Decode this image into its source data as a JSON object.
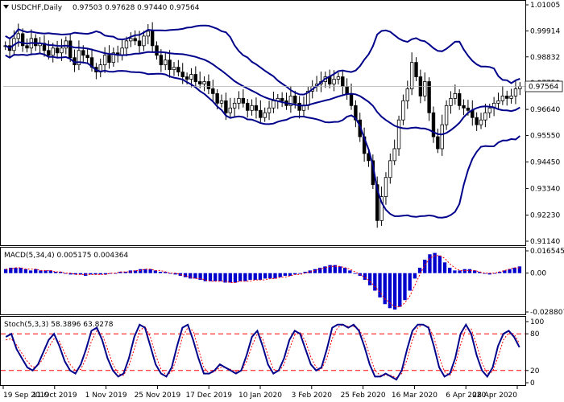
{
  "header": {
    "symbol": "USDCHF,Daily",
    "ohlc": "0.97503 0.97628 0.97440 0.97564"
  },
  "current_price_label": "0.97564",
  "colors": {
    "candles": "#000000",
    "bollinger": "#00008b",
    "macd_hist": "#0000cd",
    "macd_signal": "#ff0000",
    "stoch_main": "#00008b",
    "stoch_signal": "#ff0000",
    "current_price_bg": "#ffffff"
  },
  "chart_data": [
    {
      "type": "candlestick",
      "title": "USDCHF,Daily",
      "x_tick_labels": [
        "19 Sep 2019",
        "11 Oct 2019",
        "1 Nov 2019",
        "25 Nov 2019",
        "17 Dec 2019",
        "10 Jan 2020",
        "3 Feb 2020",
        "25 Feb 2020",
        "16 Mar 2020",
        "6 Apr 2020",
        "28 Apr 2020"
      ],
      "y_tick_labels": [
        "1.01005",
        "0.99914",
        "0.98832",
        "0.97750",
        "0.96640",
        "0.95550",
        "0.94450",
        "0.93340",
        "0.92230",
        "0.91140"
      ],
      "ylim": [
        0.9114,
        1.01005
      ],
      "indicators": [
        "Bollinger Bands (middle, upper, lower)"
      ],
      "close_series": [
        0.993,
        0.991,
        0.996,
        0.998,
        0.993,
        0.992,
        0.996,
        0.993,
        0.994,
        0.991,
        0.989,
        0.992,
        0.99,
        0.992,
        0.995,
        0.988,
        0.985,
        0.991,
        0.989,
        0.988,
        0.984,
        0.982,
        0.985,
        0.989,
        0.986,
        0.99,
        0.989,
        0.992,
        0.995,
        0.996,
        0.995,
        0.993,
        0.997,
        0.999,
        0.993,
        0.989,
        0.985,
        0.987,
        0.983,
        0.984,
        0.982,
        0.98,
        0.979,
        0.981,
        0.978,
        0.977,
        0.978,
        0.975,
        0.973,
        0.969,
        0.97,
        0.965,
        0.967,
        0.969,
        0.971,
        0.969,
        0.966,
        0.968,
        0.966,
        0.963,
        0.965,
        0.967,
        0.97,
        0.971,
        0.97,
        0.968,
        0.972,
        0.969,
        0.966,
        0.968,
        0.974,
        0.976,
        0.977,
        0.978,
        0.98,
        0.977,
        0.979,
        0.98,
        0.976,
        0.973,
        0.968,
        0.962,
        0.955,
        0.948,
        0.945,
        0.935,
        0.92,
        0.93,
        0.938,
        0.945,
        0.95,
        0.962,
        0.97,
        0.975,
        0.986,
        0.98,
        0.972,
        0.978,
        0.965,
        0.955,
        0.95,
        0.96,
        0.968,
        0.971,
        0.973,
        0.968,
        0.967,
        0.966,
        0.963,
        0.96,
        0.962,
        0.965,
        0.967,
        0.969,
        0.97,
        0.972,
        0.971,
        0.972,
        0.975,
        0.976
      ]
    },
    {
      "type": "bar",
      "title": "MACD(5,34,4) 0.005175 0.004364",
      "y_tick_labels": [
        "0.016545",
        "0.00",
        "-0.028807"
      ],
      "ylim": [
        -0.028807,
        0.016545
      ],
      "series": [
        {
          "name": "MACD",
          "values": [
            0.003,
            0.004,
            0.004,
            0.004,
            0.003,
            0.002,
            0.003,
            0.002,
            0.002,
            0.002,
            0.001,
            0.001,
            0.0,
            -0.001,
            -0.001,
            -0.001,
            -0.002,
            -0.001,
            -0.001,
            -0.001,
            -0.001,
            0.0,
            0.0,
            0.001,
            0.001,
            0.002,
            0.002,
            0.003,
            0.003,
            0.003,
            0.002,
            0.001,
            0.001,
            0.0,
            -0.001,
            -0.002,
            -0.003,
            -0.004,
            -0.004,
            -0.005,
            -0.006,
            -0.006,
            -0.006,
            -0.006,
            -0.007,
            -0.007,
            -0.007,
            -0.006,
            -0.006,
            -0.005,
            -0.005,
            -0.005,
            -0.004,
            -0.004,
            -0.004,
            -0.003,
            -0.002,
            -0.002,
            -0.001,
            0.0,
            0.001,
            0.002,
            0.003,
            0.004,
            0.005,
            0.006,
            0.006,
            0.005,
            0.004,
            0.002,
            0.0,
            -0.002,
            -0.005,
            -0.009,
            -0.013,
            -0.018,
            -0.023,
            -0.026,
            -0.027,
            -0.025,
            -0.02,
            -0.013,
            -0.004,
            0.004,
            0.01,
            0.014,
            0.015,
            0.013,
            0.008,
            0.004,
            0.002,
            0.002,
            0.003,
            0.003,
            0.002,
            0.001,
            0.0,
            -0.001,
            0.0,
            0.001,
            0.002,
            0.003,
            0.004,
            0.005
          ]
        },
        {
          "name": "Signal",
          "values": [
            0.003,
            0.003,
            0.004,
            0.004,
            0.003,
            0.003,
            0.003,
            0.002,
            0.002,
            0.002,
            0.001,
            0.001,
            0.0,
            0.0,
            -0.001,
            -0.001,
            -0.001,
            -0.001,
            -0.001,
            -0.001,
            -0.001,
            0.0,
            0.0,
            0.001,
            0.001,
            0.001,
            0.002,
            0.002,
            0.003,
            0.003,
            0.002,
            0.002,
            0.001,
            0.0,
            0.0,
            -0.001,
            -0.002,
            -0.003,
            -0.004,
            -0.004,
            -0.005,
            -0.006,
            -0.006,
            -0.006,
            -0.006,
            -0.007,
            -0.007,
            -0.006,
            -0.006,
            -0.006,
            -0.005,
            -0.005,
            -0.005,
            -0.004,
            -0.004,
            -0.003,
            -0.003,
            -0.002,
            -0.001,
            -0.001,
            0.0,
            0.001,
            0.002,
            0.003,
            0.004,
            0.005,
            0.005,
            0.005,
            0.004,
            0.003,
            0.001,
            -0.001,
            -0.003,
            -0.006,
            -0.01,
            -0.014,
            -0.019,
            -0.022,
            -0.025,
            -0.025,
            -0.022,
            -0.017,
            -0.009,
            -0.001,
            0.006,
            0.011,
            0.013,
            0.013,
            0.011,
            0.007,
            0.004,
            0.002,
            0.002,
            0.002,
            0.002,
            0.001,
            0.0,
            0.0,
            0.0,
            0.001,
            0.002,
            0.003,
            0.004,
            0.004
          ]
        }
      ]
    },
    {
      "type": "line",
      "title": "Stoch(5,3,3) 58.3896 63.8278",
      "y_tick_labels": [
        "100",
        "80",
        "20",
        "0"
      ],
      "ylim": [
        0,
        100
      ],
      "levels": [
        80,
        20
      ],
      "series": [
        {
          "name": "%K",
          "values": [
            75,
            80,
            55,
            40,
            25,
            20,
            30,
            50,
            70,
            80,
            60,
            35,
            20,
            15,
            30,
            55,
            85,
            90,
            70,
            40,
            20,
            10,
            15,
            40,
            75,
            95,
            90,
            60,
            30,
            15,
            10,
            25,
            60,
            90,
            95,
            70,
            40,
            15,
            15,
            20,
            30,
            25,
            20,
            15,
            20,
            45,
            75,
            85,
            60,
            30,
            15,
            20,
            40,
            70,
            85,
            80,
            55,
            30,
            20,
            25,
            55,
            90,
            95,
            95,
            90,
            95,
            85,
            60,
            30,
            10,
            10,
            15,
            10,
            5,
            20,
            55,
            85,
            95,
            95,
            90,
            60,
            25,
            10,
            15,
            40,
            80,
            95,
            80,
            45,
            20,
            10,
            25,
            60,
            80,
            85,
            75,
            58
          ]
        },
        {
          "name": "%D",
          "values": [
            70,
            72,
            62,
            48,
            35,
            25,
            28,
            40,
            58,
            72,
            68,
            48,
            30,
            20,
            22,
            40,
            68,
            85,
            80,
            55,
            30,
            15,
            12,
            28,
            55,
            85,
            92,
            75,
            45,
            22,
            12,
            18,
            42,
            75,
            90,
            85,
            55,
            25,
            15,
            18,
            25,
            25,
            22,
            18,
            18,
            35,
            60,
            80,
            72,
            45,
            22,
            18,
            30,
            55,
            78,
            82,
            68,
            42,
            25,
            22,
            40,
            72,
            90,
            95,
            92,
            92,
            88,
            72,
            45,
            20,
            12,
            12,
            12,
            8,
            15,
            38,
            70,
            90,
            95,
            92,
            75,
            42,
            18,
            12,
            28,
            62,
            88,
            88,
            62,
            32,
            15,
            18,
            42,
            70,
            82,
            80,
            64
          ]
        }
      ]
    }
  ],
  "macd_header": "MACD(5,34,4) 0.005175 0.004364",
  "stoch_header": "Stoch(5,3,3) 58.3896 63.8278"
}
